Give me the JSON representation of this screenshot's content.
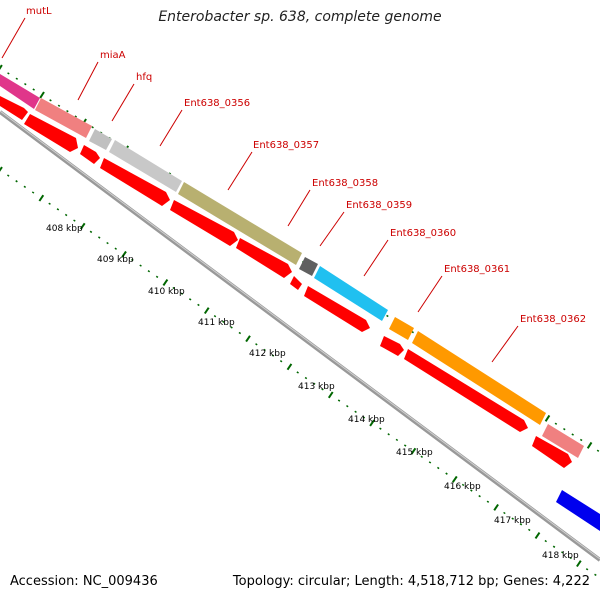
{
  "title": "Enterobacter sp. 638, complete genome",
  "accession": "Accession: NC_009436",
  "stats": "Topology: circular; Length: 4,518,712 bp; Genes: 4,222",
  "colors": {
    "forward_cds": "#ff0000",
    "backbone": "#888888",
    "tick_major": "#006600"
  },
  "gene_labels": [
    "mutL",
    "miaA",
    "hfq",
    "Ent638_0356",
    "Ent638_0357",
    "Ent638_0358",
    "Ent638_0359",
    "Ent638_0360",
    "Ent638_0361",
    "Ent638_0362"
  ],
  "tick_labels": [
    "408 kbp",
    "409 kbp",
    "410 kbp",
    "411 kbp",
    "412 kbp",
    "413 kbp",
    "414 kbp",
    "415 kbp",
    "416 kbp",
    "417 kbp",
    "418 kbp"
  ]
}
